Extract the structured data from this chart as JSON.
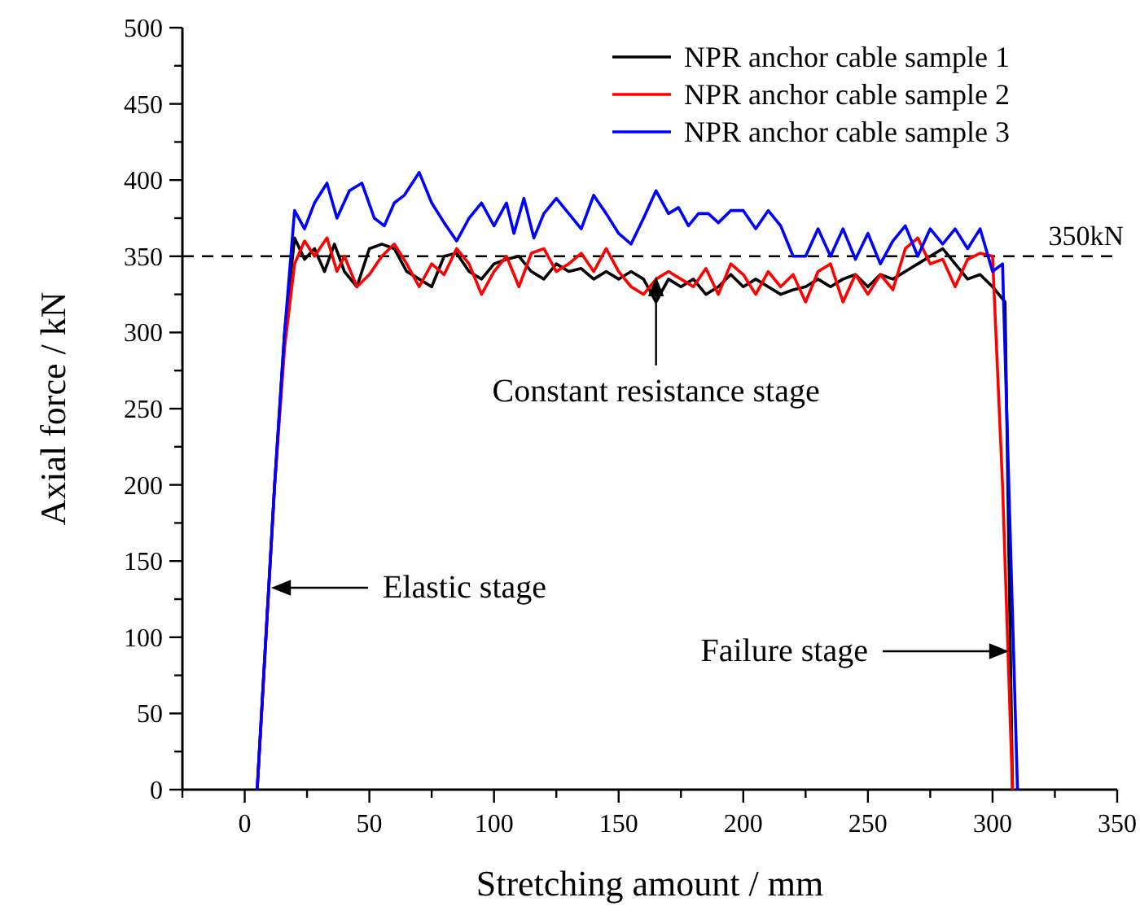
{
  "chart_data": {
    "type": "line",
    "xlabel": "Stretching amount / mm",
    "ylabel": "Axial force / kN",
    "xlim": [
      -25,
      350
    ],
    "xticks": [
      {
        "value": -25,
        "label": null
      },
      0,
      {
        "value": 25,
        "label": null
      },
      50,
      {
        "value": 75,
        "label": null
      },
      100,
      {
        "value": 125,
        "label": null
      },
      150,
      {
        "value": 175,
        "label": null
      },
      200,
      {
        "value": 225,
        "label": null
      },
      250,
      {
        "value": 275,
        "label": null
      },
      300,
      {
        "value": 325,
        "label": null
      },
      350
    ],
    "ylim": [
      0,
      500
    ],
    "yticks": [
      0,
      {
        "value": 25,
        "label": null
      },
      50,
      {
        "value": 75,
        "label": null
      },
      100,
      {
        "value": 125,
        "label": null
      },
      150,
      {
        "value": 175,
        "label": null
      },
      200,
      {
        "value": 225,
        "label": null
      },
      250,
      {
        "value": 275,
        "label": null
      },
      300,
      {
        "value": 325,
        "label": null
      },
      350,
      {
        "value": 375,
        "label": null
      },
      400,
      {
        "value": 425,
        "label": null
      },
      450,
      {
        "value": 475,
        "label": null
      },
      500
    ],
    "grid": false,
    "legend": "top right",
    "marker": "none",
    "line_style": "solid",
    "ref_lines": [
      {
        "axis": "y",
        "value": 350,
        "label": "350kN",
        "color": "#000000",
        "line_style": "dashed"
      }
    ],
    "annotations": [
      {
        "text": "Constant resistance stage",
        "x": 165,
        "y": 335
      },
      "Elastic stage",
      "Failure stage"
    ],
    "series": [
      {
        "name": "NPR anchor cable sample 1",
        "color": "#000000",
        "x": [
          5,
          12,
          16,
          20,
          24,
          28,
          32,
          36,
          40,
          45,
          50,
          55,
          60,
          65,
          70,
          75,
          80,
          85,
          90,
          95,
          100,
          105,
          110,
          115,
          120,
          125,
          130,
          135,
          140,
          145,
          150,
          155,
          160,
          165,
          170,
          175,
          180,
          185,
          190,
          195,
          200,
          205,
          210,
          215,
          220,
          225,
          230,
          235,
          240,
          245,
          250,
          255,
          260,
          265,
          270,
          275,
          280,
          285,
          290,
          295,
          300,
          305,
          308
        ],
        "values": [
          0,
          200,
          300,
          362,
          348,
          355,
          340,
          358,
          340,
          330,
          355,
          358,
          355,
          340,
          335,
          330,
          350,
          352,
          340,
          335,
          345,
          348,
          350,
          340,
          335,
          345,
          340,
          342,
          335,
          340,
          335,
          340,
          335,
          320,
          335,
          330,
          335,
          325,
          330,
          338,
          330,
          335,
          330,
          325,
          328,
          330,
          335,
          330,
          335,
          338,
          330,
          338,
          335,
          340,
          345,
          350,
          355,
          345,
          335,
          338,
          330,
          320,
          0
        ]
      },
      {
        "name": "NPR anchor cable sample 2",
        "color": "#ff0000",
        "x": [
          5,
          12,
          16,
          20,
          24,
          28,
          33,
          37,
          40,
          45,
          50,
          55,
          60,
          65,
          70,
          75,
          80,
          85,
          90,
          95,
          100,
          105,
          110,
          115,
          120,
          125,
          130,
          135,
          140,
          145,
          150,
          155,
          160,
          165,
          170,
          175,
          180,
          185,
          190,
          195,
          200,
          205,
          210,
          215,
          220,
          225,
          230,
          235,
          240,
          245,
          250,
          255,
          260,
          265,
          270,
          275,
          280,
          285,
          290,
          295,
          300,
          304,
          308
        ],
        "values": [
          0,
          200,
          290,
          345,
          360,
          350,
          362,
          340,
          350,
          330,
          338,
          350,
          358,
          345,
          330,
          345,
          338,
          355,
          345,
          325,
          340,
          350,
          330,
          352,
          355,
          340,
          345,
          352,
          340,
          355,
          340,
          330,
          325,
          335,
          340,
          335,
          330,
          342,
          325,
          345,
          338,
          325,
          340,
          330,
          338,
          320,
          340,
          345,
          320,
          338,
          325,
          338,
          328,
          355,
          362,
          345,
          348,
          330,
          348,
          352,
          350,
          200,
          0
        ]
      },
      {
        "name": "NPR anchor cable sample 3",
        "color": "#0000ff",
        "x": [
          5,
          12,
          16,
          20,
          24,
          28,
          33,
          37,
          42,
          47,
          52,
          56,
          60,
          64,
          70,
          75,
          80,
          85,
          90,
          95,
          100,
          105,
          108,
          112,
          116,
          120,
          125,
          130,
          135,
          140,
          145,
          150,
          155,
          160,
          165,
          170,
          174,
          178,
          182,
          186,
          190,
          195,
          200,
          205,
          210,
          215,
          220,
          225,
          230,
          235,
          240,
          245,
          250,
          255,
          260,
          265,
          270,
          275,
          280,
          285,
          290,
          295,
          300,
          304,
          310
        ],
        "values": [
          0,
          200,
          300,
          380,
          368,
          385,
          398,
          375,
          393,
          398,
          375,
          370,
          385,
          390,
          405,
          385,
          372,
          360,
          375,
          385,
          370,
          385,
          365,
          388,
          362,
          378,
          388,
          378,
          368,
          390,
          378,
          365,
          358,
          375,
          393,
          378,
          382,
          370,
          378,
          378,
          372,
          380,
          380,
          368,
          380,
          370,
          350,
          350,
          368,
          350,
          368,
          348,
          365,
          345,
          360,
          370,
          350,
          368,
          358,
          368,
          355,
          368,
          340,
          345,
          0
        ]
      }
    ]
  }
}
